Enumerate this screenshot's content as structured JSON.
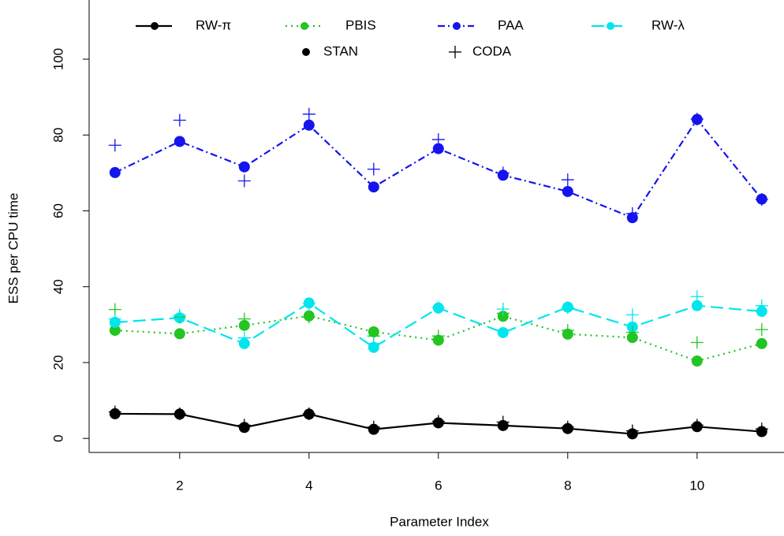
{
  "chart_data": {
    "type": "line",
    "x_label": "Parameter Index",
    "y_label": "ESS per CPU time",
    "x": [
      1,
      2,
      3,
      4,
      5,
      6,
      7,
      8,
      9,
      10,
      11
    ],
    "xlim": [
      0.6,
      11.4
    ],
    "xticks": [
      2,
      4,
      6,
      8,
      10
    ],
    "ylim": [
      -3.7,
      115.6
    ],
    "yticks": [
      0,
      20,
      40,
      60,
      80,
      100
    ],
    "series": [
      {
        "name": "RW-π",
        "color": "#000000",
        "dash": "solid",
        "values": [
          6.5,
          6.4,
          2.9,
          6.4,
          2.4,
          4.1,
          3.4,
          2.6,
          1.2,
          3.1,
          1.8
        ]
      },
      {
        "name": "PBIS",
        "color": "#22c522",
        "dash": "dotted",
        "values": [
          28.5,
          27.6,
          29.8,
          32.3,
          28.1,
          25.9,
          32.2,
          27.5,
          26.6,
          20.4,
          25.0
        ]
      },
      {
        "name": "PAA",
        "color": "#1414ee",
        "dash": "dotdash",
        "values": [
          70.1,
          78.3,
          71.6,
          82.6,
          66.3,
          76.4,
          69.4,
          65.1,
          58.2,
          84.1,
          63.1
        ]
      },
      {
        "name": "RW-λ",
        "color": "#00e5ee",
        "dash": "dashed",
        "values": [
          30.6,
          31.8,
          25.0,
          35.7,
          24.0,
          34.4,
          27.9,
          34.6,
          29.4,
          35.0,
          33.5
        ]
      }
    ],
    "markers": [
      {
        "name": "STAN",
        "symbol": "dot",
        "color": "#000000"
      },
      {
        "name": "CODA",
        "symbol": "plus",
        "color": "#000000",
        "groups": [
          {
            "color": "#000000",
            "values": [
              7.0,
              6.5,
              3.5,
              6.5,
              3.0,
              4.5,
              4.3,
              3.0,
              2.0,
              3.5,
              2.5
            ]
          },
          {
            "color": "#22c522",
            "values": [
              34.0,
              32.0,
              31.5,
              32.0,
              27.0,
              27.0,
              33.0,
              28.5,
              28.0,
              25.3,
              28.7
            ]
          },
          {
            "color": "#1414ee",
            "values": [
              77.3,
              83.9,
              67.9,
              85.5,
              71.0,
              78.8,
              70.0,
              68.2,
              59.3,
              84.2,
              63.0
            ]
          },
          {
            "color": "#00e5ee",
            "values": [
              31.5,
              32.5,
              26.5,
              35.5,
              25.0,
              34.5,
              34.1,
              34.5,
              32.6,
              37.4,
              35.0
            ]
          }
        ]
      }
    ]
  }
}
